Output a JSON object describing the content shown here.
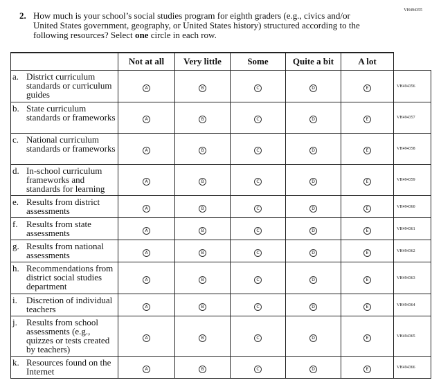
{
  "question": {
    "code": "VH494355",
    "number": "2.",
    "text_parts": [
      "How much is your school’s social studies program for eighth graders (e.g., civics and/or United States government, geography, or United States history) structured according to the following resources? Select ",
      "one",
      " circle in each row."
    ]
  },
  "table": {
    "columns": [
      "Not at all",
      "Very little",
      "Some",
      "Quite a bit",
      "A lot"
    ],
    "bubble_letters": [
      "A",
      "B",
      "C",
      "D",
      "E"
    ],
    "rows": [
      {
        "letter": "a.",
        "label": "District curriculum standards or curriculum guides",
        "code": "VH494356"
      },
      {
        "letter": "b.",
        "label": "State curriculum standards or frameworks",
        "code": "VH494357"
      },
      {
        "letter": "c.",
        "label": "National curriculum standards or frameworks",
        "code": "VH494358"
      },
      {
        "letter": "d.",
        "label": "In-school curriculum frameworks and standards for learning",
        "code": "VH494359"
      },
      {
        "letter": "e.",
        "label": "Results from district assessments",
        "code": "VH494360"
      },
      {
        "letter": "f.",
        "label": "Results from state assessments",
        "code": "VH494361"
      },
      {
        "letter": "g.",
        "label": "Results from national assessments",
        "code": "VH494362"
      },
      {
        "letter": "h.",
        "label": "Recommendations from district social studies department",
        "code": "VH494363"
      },
      {
        "letter": "i.",
        "label": "Discretion of individual teachers",
        "code": "VH494364"
      },
      {
        "letter": "j.",
        "label": "Results from school assessments (e.g., quizzes or tests created by teachers)",
        "code": "VH494365"
      },
      {
        "letter": "k.",
        "label": "Resources found on the Internet",
        "code": "VH494366"
      }
    ]
  }
}
